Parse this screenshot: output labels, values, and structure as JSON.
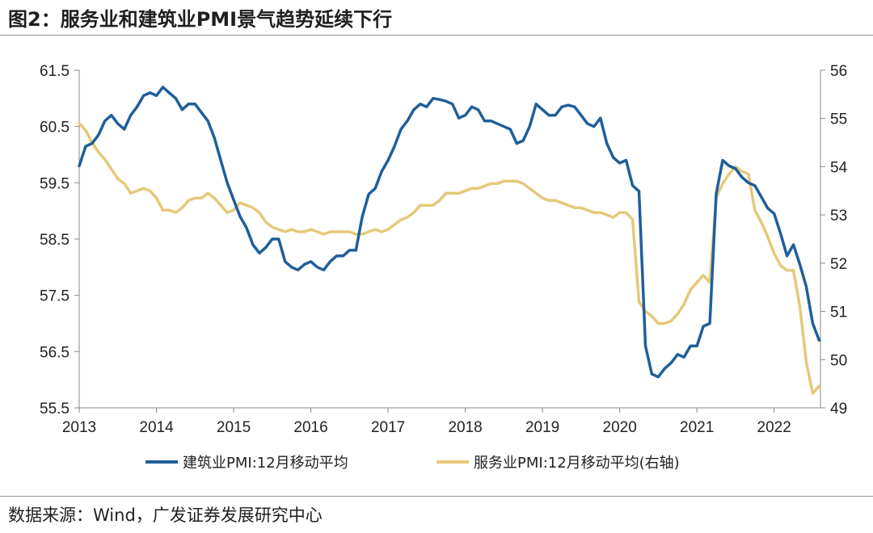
{
  "title": "图2：服务业和建筑业PMI景气趋势延续下行",
  "source": "数据来源：Wind，广发证券发展研究中心",
  "chart_data": {
    "type": "line",
    "title": "图2：服务业和建筑业PMI景气趋势延续下行",
    "x_ticks": [
      "2013",
      "2014",
      "2015",
      "2016",
      "2017",
      "2018",
      "2019",
      "2020",
      "2021",
      "2022"
    ],
    "y_left": {
      "lim": [
        55.5,
        61.5
      ],
      "ticks": [
        55.5,
        56.5,
        57.5,
        58.5,
        59.5,
        60.5,
        61.5
      ],
      "tick_labels": [
        "55.5",
        "56.5",
        "57.5",
        "58.5",
        "59.5",
        "60.5",
        "61.5"
      ]
    },
    "y_right": {
      "lim": [
        49,
        56
      ],
      "ticks": [
        49,
        50,
        51,
        52,
        53,
        54,
        55,
        56
      ],
      "tick_labels": [
        "49",
        "50",
        "51",
        "52",
        "53",
        "54",
        "55",
        "56"
      ]
    },
    "legend_position": "bottom",
    "grid": false,
    "series": [
      {
        "name": "建筑业PMI:12月移动平均",
        "axis": "left",
        "color": "#1f5f9a",
        "points": [
          [
            "2013-01",
            59.8
          ],
          [
            "2013-02",
            60.15
          ],
          [
            "2013-03",
            60.2
          ],
          [
            "2013-04",
            60.35
          ],
          [
            "2013-05",
            60.6
          ],
          [
            "2013-06",
            60.7
          ],
          [
            "2013-07",
            60.55
          ],
          [
            "2013-08",
            60.45
          ],
          [
            "2013-09",
            60.7
          ],
          [
            "2013-10",
            60.85
          ],
          [
            "2013-11",
            61.05
          ],
          [
            "2013-12",
            61.1
          ],
          [
            "2014-01",
            61.05
          ],
          [
            "2014-02",
            61.2
          ],
          [
            "2014-03",
            61.1
          ],
          [
            "2014-04",
            61.0
          ],
          [
            "2014-05",
            60.8
          ],
          [
            "2014-06",
            60.9
          ],
          [
            "2014-07",
            60.9
          ],
          [
            "2014-08",
            60.75
          ],
          [
            "2014-09",
            60.6
          ],
          [
            "2014-10",
            60.3
          ],
          [
            "2014-11",
            59.9
          ],
          [
            "2014-12",
            59.5
          ],
          [
            "2015-01",
            59.2
          ],
          [
            "2015-02",
            58.9
          ],
          [
            "2015-03",
            58.7
          ],
          [
            "2015-04",
            58.4
          ],
          [
            "2015-05",
            58.25
          ],
          [
            "2015-06",
            58.35
          ],
          [
            "2015-07",
            58.5
          ],
          [
            "2015-08",
            58.5
          ],
          [
            "2015-09",
            58.1
          ],
          [
            "2015-10",
            58.0
          ],
          [
            "2015-11",
            57.95
          ],
          [
            "2015-12",
            58.05
          ],
          [
            "2016-01",
            58.1
          ],
          [
            "2016-02",
            58.0
          ],
          [
            "2016-03",
            57.95
          ],
          [
            "2016-04",
            58.1
          ],
          [
            "2016-05",
            58.2
          ],
          [
            "2016-06",
            58.2
          ],
          [
            "2016-07",
            58.3
          ],
          [
            "2016-08",
            58.3
          ],
          [
            "2016-09",
            58.9
          ],
          [
            "2016-10",
            59.3
          ],
          [
            "2016-11",
            59.4
          ],
          [
            "2016-12",
            59.7
          ],
          [
            "2017-01",
            59.9
          ],
          [
            "2017-02",
            60.15
          ],
          [
            "2017-03",
            60.45
          ],
          [
            "2017-04",
            60.6
          ],
          [
            "2017-05",
            60.8
          ],
          [
            "2017-06",
            60.9
          ],
          [
            "2017-07",
            60.85
          ],
          [
            "2017-08",
            61.0
          ],
          [
            "2017-09",
            60.98
          ],
          [
            "2017-10",
            60.95
          ],
          [
            "2017-11",
            60.9
          ],
          [
            "2017-12",
            60.65
          ],
          [
            "2018-01",
            60.7
          ],
          [
            "2018-02",
            60.85
          ],
          [
            "2018-03",
            60.8
          ],
          [
            "2018-04",
            60.6
          ],
          [
            "2018-05",
            60.6
          ],
          [
            "2018-06",
            60.55
          ],
          [
            "2018-07",
            60.5
          ],
          [
            "2018-08",
            60.45
          ],
          [
            "2018-09",
            60.2
          ],
          [
            "2018-10",
            60.25
          ],
          [
            "2018-11",
            60.5
          ],
          [
            "2018-12",
            60.9
          ],
          [
            "2019-01",
            60.8
          ],
          [
            "2019-02",
            60.7
          ],
          [
            "2019-03",
            60.7
          ],
          [
            "2019-04",
            60.85
          ],
          [
            "2019-05",
            60.88
          ],
          [
            "2019-06",
            60.85
          ],
          [
            "2019-07",
            60.7
          ],
          [
            "2019-08",
            60.55
          ],
          [
            "2019-09",
            60.5
          ],
          [
            "2019-10",
            60.65
          ],
          [
            "2019-11",
            60.2
          ],
          [
            "2019-12",
            59.95
          ],
          [
            "2020-01",
            59.85
          ],
          [
            "2020-02",
            59.9
          ],
          [
            "2020-03",
            59.45
          ],
          [
            "2020-04",
            59.35
          ],
          [
            "2020-05",
            56.6
          ],
          [
            "2020-06",
            56.1
          ],
          [
            "2020-07",
            56.05
          ],
          [
            "2020-08",
            56.2
          ],
          [
            "2020-09",
            56.3
          ],
          [
            "2020-10",
            56.45
          ],
          [
            "2020-11",
            56.4
          ],
          [
            "2020-12",
            56.6
          ],
          [
            "2021-01",
            56.6
          ],
          [
            "2021-02",
            56.95
          ],
          [
            "2021-03",
            57.0
          ],
          [
            "2021-04",
            59.3
          ],
          [
            "2021-05",
            59.9
          ],
          [
            "2021-06",
            59.8
          ],
          [
            "2021-07",
            59.75
          ],
          [
            "2021-08",
            59.6
          ],
          [
            "2021-09",
            59.5
          ],
          [
            "2021-10",
            59.45
          ],
          [
            "2021-11",
            59.25
          ],
          [
            "2021-12",
            59.05
          ],
          [
            "2022-01",
            58.95
          ],
          [
            "2022-02",
            58.6
          ],
          [
            "2022-03",
            58.2
          ],
          [
            "2022-04",
            58.4
          ],
          [
            "2022-05",
            58.05
          ],
          [
            "2022-06",
            57.65
          ],
          [
            "2022-07",
            57.0
          ],
          [
            "2022-08",
            56.7
          ]
        ]
      },
      {
        "name": "服务业PMI:12月移动平均(右轴)",
        "axis": "right",
        "color": "#e5c97a",
        "points": [
          [
            "2013-01",
            54.9
          ],
          [
            "2013-02",
            54.75
          ],
          [
            "2013-03",
            54.5
          ],
          [
            "2013-04",
            54.3
          ],
          [
            "2013-05",
            54.15
          ],
          [
            "2013-06",
            53.95
          ],
          [
            "2013-07",
            53.75
          ],
          [
            "2013-08",
            53.65
          ],
          [
            "2013-09",
            53.45
          ],
          [
            "2013-10",
            53.5
          ],
          [
            "2013-11",
            53.55
          ],
          [
            "2013-12",
            53.5
          ],
          [
            "2014-01",
            53.35
          ],
          [
            "2014-02",
            53.1
          ],
          [
            "2014-03",
            53.1
          ],
          [
            "2014-04",
            53.05
          ],
          [
            "2014-05",
            53.15
          ],
          [
            "2014-06",
            53.3
          ],
          [
            "2014-07",
            53.35
          ],
          [
            "2014-08",
            53.35
          ],
          [
            "2014-09",
            53.45
          ],
          [
            "2014-10",
            53.35
          ],
          [
            "2014-11",
            53.2
          ],
          [
            "2014-12",
            53.05
          ],
          [
            "2015-01",
            53.1
          ],
          [
            "2015-02",
            53.25
          ],
          [
            "2015-03",
            53.2
          ],
          [
            "2015-04",
            53.15
          ],
          [
            "2015-05",
            53.05
          ],
          [
            "2015-06",
            52.85
          ],
          [
            "2015-07",
            52.75
          ],
          [
            "2015-08",
            52.7
          ],
          [
            "2015-09",
            52.65
          ],
          [
            "2015-10",
            52.7
          ],
          [
            "2015-11",
            52.65
          ],
          [
            "2015-12",
            52.65
          ],
          [
            "2016-01",
            52.7
          ],
          [
            "2016-02",
            52.65
          ],
          [
            "2016-03",
            52.6
          ],
          [
            "2016-04",
            52.65
          ],
          [
            "2016-05",
            52.65
          ],
          [
            "2016-06",
            52.65
          ],
          [
            "2016-07",
            52.65
          ],
          [
            "2016-08",
            52.6
          ],
          [
            "2016-09",
            52.6
          ],
          [
            "2016-10",
            52.65
          ],
          [
            "2016-11",
            52.7
          ],
          [
            "2016-12",
            52.65
          ],
          [
            "2017-01",
            52.7
          ],
          [
            "2017-02",
            52.8
          ],
          [
            "2017-03",
            52.9
          ],
          [
            "2017-04",
            52.95
          ],
          [
            "2017-05",
            53.05
          ],
          [
            "2017-06",
            53.2
          ],
          [
            "2017-07",
            53.2
          ],
          [
            "2017-08",
            53.2
          ],
          [
            "2017-09",
            53.3
          ],
          [
            "2017-10",
            53.45
          ],
          [
            "2017-11",
            53.45
          ],
          [
            "2017-12",
            53.45
          ],
          [
            "2018-01",
            53.5
          ],
          [
            "2018-02",
            53.55
          ],
          [
            "2018-03",
            53.55
          ],
          [
            "2018-04",
            53.6
          ],
          [
            "2018-05",
            53.65
          ],
          [
            "2018-06",
            53.65
          ],
          [
            "2018-07",
            53.7
          ],
          [
            "2018-08",
            53.7
          ],
          [
            "2018-09",
            53.7
          ],
          [
            "2018-10",
            53.65
          ],
          [
            "2018-11",
            53.55
          ],
          [
            "2018-12",
            53.45
          ],
          [
            "2019-01",
            53.35
          ],
          [
            "2019-02",
            53.3
          ],
          [
            "2019-03",
            53.3
          ],
          [
            "2019-04",
            53.25
          ],
          [
            "2019-05",
            53.2
          ],
          [
            "2019-06",
            53.15
          ],
          [
            "2019-07",
            53.15
          ],
          [
            "2019-08",
            53.1
          ],
          [
            "2019-09",
            53.05
          ],
          [
            "2019-10",
            53.05
          ],
          [
            "2019-11",
            53.0
          ],
          [
            "2019-12",
            52.95
          ],
          [
            "2020-01",
            53.05
          ],
          [
            "2020-02",
            53.05
          ],
          [
            "2020-03",
            52.9
          ],
          [
            "2020-04",
            51.2
          ],
          [
            "2020-05",
            51.0
          ],
          [
            "2020-06",
            50.9
          ],
          [
            "2020-07",
            50.75
          ],
          [
            "2020-08",
            50.75
          ],
          [
            "2020-09",
            50.8
          ],
          [
            "2020-10",
            50.95
          ],
          [
            "2020-11",
            51.15
          ],
          [
            "2020-12",
            51.45
          ],
          [
            "2021-01",
            51.6
          ],
          [
            "2021-02",
            51.75
          ],
          [
            "2021-03",
            51.6
          ],
          [
            "2021-04",
            53.35
          ],
          [
            "2021-05",
            53.65
          ],
          [
            "2021-06",
            53.85
          ],
          [
            "2021-07",
            54.0
          ],
          [
            "2021-08",
            53.9
          ],
          [
            "2021-09",
            53.85
          ],
          [
            "2021-10",
            53.1
          ],
          [
            "2021-11",
            52.85
          ],
          [
            "2021-12",
            52.55
          ],
          [
            "2022-01",
            52.2
          ],
          [
            "2022-02",
            51.95
          ],
          [
            "2022-03",
            51.85
          ],
          [
            "2022-04",
            51.85
          ],
          [
            "2022-05",
            51.1
          ],
          [
            "2022-06",
            49.95
          ],
          [
            "2022-07",
            49.3
          ],
          [
            "2022-08",
            49.45
          ]
        ]
      }
    ]
  }
}
